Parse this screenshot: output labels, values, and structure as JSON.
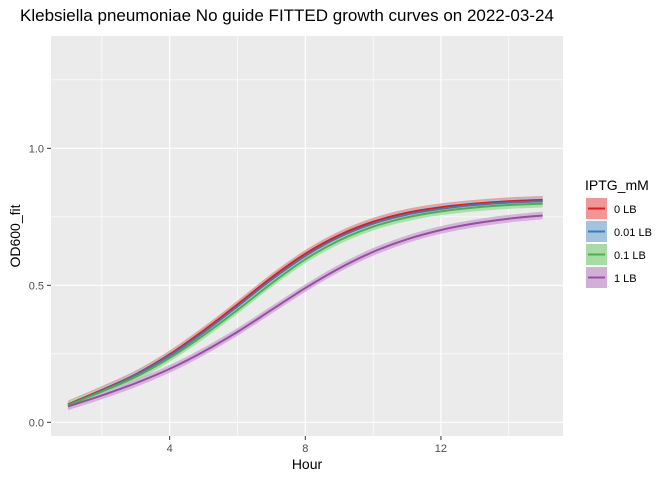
{
  "chart_data": {
    "type": "line",
    "title": "Klebsiella pneumoniae No guide FITTED growth curves on 2022-03-24",
    "xlabel": "Hour",
    "ylabel": "OD600_fit",
    "xlim": [
      0.5,
      15.6
    ],
    "ylim": [
      -0.05,
      1.41
    ],
    "x_ticks": [
      4,
      8,
      12
    ],
    "y_ticks": [
      0.0,
      0.5,
      1.0
    ],
    "x_tick_labels": [
      "4",
      "8",
      "12"
    ],
    "y_tick_labels": [
      "0.0",
      "0.5",
      "1.0"
    ],
    "grid": true,
    "legend": {
      "title": "IPTG_mM",
      "placement": "right"
    },
    "x": [
      1,
      2,
      3,
      4,
      5,
      6,
      7,
      8,
      9,
      10,
      11,
      12,
      13,
      14,
      15
    ],
    "series": [
      {
        "name": "0 LB",
        "color": "#e41a1c",
        "fill": "#f19595",
        "values": [
          0.065,
          0.118,
          0.175,
          0.248,
          0.335,
          0.43,
          0.528,
          0.615,
          0.683,
          0.732,
          0.765,
          0.785,
          0.798,
          0.807,
          0.812
        ]
      },
      {
        "name": "0.01 LB",
        "color": "#377eb8",
        "fill": "#a3c3df",
        "values": [
          0.063,
          0.115,
          0.172,
          0.243,
          0.328,
          0.423,
          0.52,
          0.607,
          0.676,
          0.725,
          0.758,
          0.779,
          0.793,
          0.802,
          0.807
        ]
      },
      {
        "name": "0.1 LB",
        "color": "#4daf4a",
        "fill": "#a9dba7",
        "values": [
          0.062,
          0.112,
          0.166,
          0.235,
          0.318,
          0.41,
          0.507,
          0.595,
          0.664,
          0.714,
          0.748,
          0.77,
          0.784,
          0.793,
          0.798
        ]
      },
      {
        "name": "1 LB",
        "color": "#984ea3",
        "fill": "#d3aed9",
        "values": [
          0.058,
          0.098,
          0.143,
          0.195,
          0.258,
          0.33,
          0.41,
          0.49,
          0.562,
          0.622,
          0.668,
          0.702,
          0.726,
          0.743,
          0.755
        ]
      }
    ]
  }
}
